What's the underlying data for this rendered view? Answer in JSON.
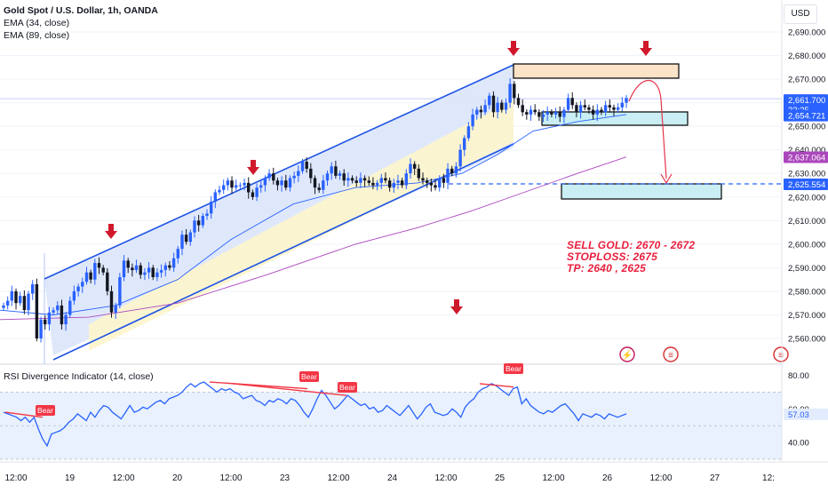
{
  "header": {
    "title": "Gold Spot / U.S. Dollar, 1h, OANDA",
    "ema1": "EMA (34, close)",
    "ema2": "EMA (89, close)",
    "currency": "USD"
  },
  "note": {
    "line1": "SELL GOLD: 2670 - 2672",
    "line2": "STOPLOSS: 2675",
    "line3": "TP: 2640 , 2625"
  },
  "rsi": {
    "title": "RSI Divergence Indicator (14, close)",
    "current": "57.03",
    "ticks": [
      "80.00",
      "60.00",
      "40.00"
    ],
    "bear_label": "Bear"
  },
  "price_badges": {
    "last": "2,661.700",
    "countdown": "22:25",
    "ema34": "2,654.721",
    "ema89": "2,637.064",
    "tp2": "2,625.554"
  },
  "colors": {
    "up": "#2962ff",
    "down": "#131722",
    "ema34": "#2962ff",
    "ema89": "#ab47bc",
    "annotation": "#e91e3c",
    "channel_fill": "#dbe5fb",
    "channel_inner": "#fdf5cc",
    "sell_zone": "#fbe3c8",
    "target_zone": "#c9eef3",
    "rsi_band": "#e8f1fd"
  },
  "chart_data": {
    "type": "candlestick",
    "title": "Gold Spot / U.S. Dollar, 1h, OANDA",
    "y_axis": {
      "min": 2552,
      "max": 2695,
      "ticks": [
        "2,690.000",
        "2,680.000",
        "2,670.000",
        "2,660.000",
        "2,650.000",
        "2,640.000",
        "2,630.000",
        "2,620.000",
        "2,610.000",
        "2,600.000",
        "2,590.000",
        "2,580.000",
        "2,570.000",
        "2,560.000"
      ]
    },
    "x_axis": {
      "labels": [
        "12:00",
        "19",
        "12:00",
        "20",
        "12:00",
        "23",
        "12:00",
        "24",
        "12:00",
        "25",
        "12:00",
        "26",
        "12:00",
        "27",
        "12:"
      ]
    },
    "close_path": [
      2574,
      2576,
      2580,
      2575,
      2578,
      2572,
      2579,
      2583,
      2560,
      2568,
      2566,
      2571,
      2572,
      2574,
      2566,
      2570,
      2576,
      2580,
      2582,
      2584,
      2588,
      2585,
      2592,
      2590,
      2588,
      2580,
      2571,
      2574,
      2586,
      2593,
      2590,
      2589,
      2591,
      2587,
      2588,
      2590,
      2586,
      2588,
      2589,
      2591,
      2590,
      2594,
      2598,
      2604,
      2601,
      2605,
      2610,
      2608,
      2612,
      2613,
      2618,
      2622,
      2623,
      2625,
      2627,
      2624,
      2625,
      2625,
      2626,
      2622,
      2620,
      2624,
      2625,
      2628,
      2630,
      2627,
      2625,
      2627,
      2624,
      2628,
      2629,
      2631,
      2635,
      2632,
      2628,
      2624,
      2623,
      2627,
      2630,
      2633,
      2629,
      2630,
      2627,
      2628,
      2627,
      2626,
      2628,
      2627,
      2626,
      2625,
      2626,
      2628,
      2627,
      2624,
      2626,
      2627,
      2625,
      2630,
      2634,
      2632,
      2628,
      2627,
      2626,
      2625,
      2624,
      2628,
      2626,
      2632,
      2630,
      2633,
      2640,
      2645,
      2650,
      2655,
      2657,
      2656,
      2659,
      2663,
      2656,
      2660,
      2657,
      2660,
      2668,
      2662,
      2659,
      2656,
      2655,
      2657,
      2656,
      2654,
      2655,
      2656,
      2655,
      2656,
      2654,
      2657,
      2662,
      2659,
      2656,
      2659,
      2658,
      2657,
      2655,
      2657,
      2656,
      2659,
      2658,
      2657,
      2658,
      2660,
      2662
    ],
    "ema34_path": [
      [
        0,
        2572
      ],
      [
        60,
        2570
      ],
      [
        130,
        2574
      ],
      [
        200,
        2585
      ],
      [
        260,
        2602
      ],
      [
        330,
        2617
      ],
      [
        400,
        2624
      ],
      [
        470,
        2626
      ],
      [
        520,
        2630
      ],
      [
        560,
        2638
      ],
      [
        600,
        2648
      ],
      [
        650,
        2652
      ],
      [
        705,
        2655
      ]
    ],
    "ema89_path": [
      [
        0,
        2568
      ],
      [
        100,
        2569
      ],
      [
        200,
        2575
      ],
      [
        300,
        2587
      ],
      [
        400,
        2600
      ],
      [
        470,
        2607
      ],
      [
        530,
        2614
      ],
      [
        590,
        2622
      ],
      [
        650,
        2630
      ],
      [
        705,
        2637
      ]
    ],
    "rsi_path": [
      58,
      57,
      56,
      55,
      53,
      55,
      52,
      55,
      48,
      42,
      38,
      45,
      46,
      47,
      49,
      52,
      54,
      57,
      55,
      53,
      58,
      55,
      59,
      62,
      61,
      58,
      56,
      54,
      58,
      62,
      58,
      59,
      61,
      60,
      62,
      64,
      65,
      63,
      66,
      67,
      68,
      70,
      73,
      75,
      73,
      75,
      76,
      74,
      72,
      70,
      72,
      71,
      72,
      70,
      69,
      66,
      67,
      68,
      65,
      64,
      62,
      65,
      64,
      66,
      65,
      63,
      66,
      65,
      62,
      58,
      55,
      60,
      66,
      71,
      68,
      64,
      60,
      62,
      65,
      68,
      66,
      64,
      62,
      63,
      60,
      61,
      58,
      59,
      62,
      60,
      58,
      56,
      59,
      62,
      58,
      54,
      57,
      61,
      63,
      58,
      57,
      56,
      57,
      60,
      58,
      55,
      61,
      64,
      66,
      70,
      72,
      73,
      75,
      74,
      72,
      70,
      68,
      72,
      73,
      63,
      66,
      62,
      60,
      58,
      57,
      59,
      58,
      60,
      62,
      63,
      60,
      57,
      53,
      57,
      56,
      55,
      57,
      56,
      54,
      57,
      56,
      55,
      56,
      57
    ],
    "rsi_range": [
      30,
      85
    ],
    "annotations": {
      "sell_zone": [
        2670,
        2672
      ],
      "stoploss": 2675,
      "tp": [
        2640,
        2625
      ]
    }
  }
}
